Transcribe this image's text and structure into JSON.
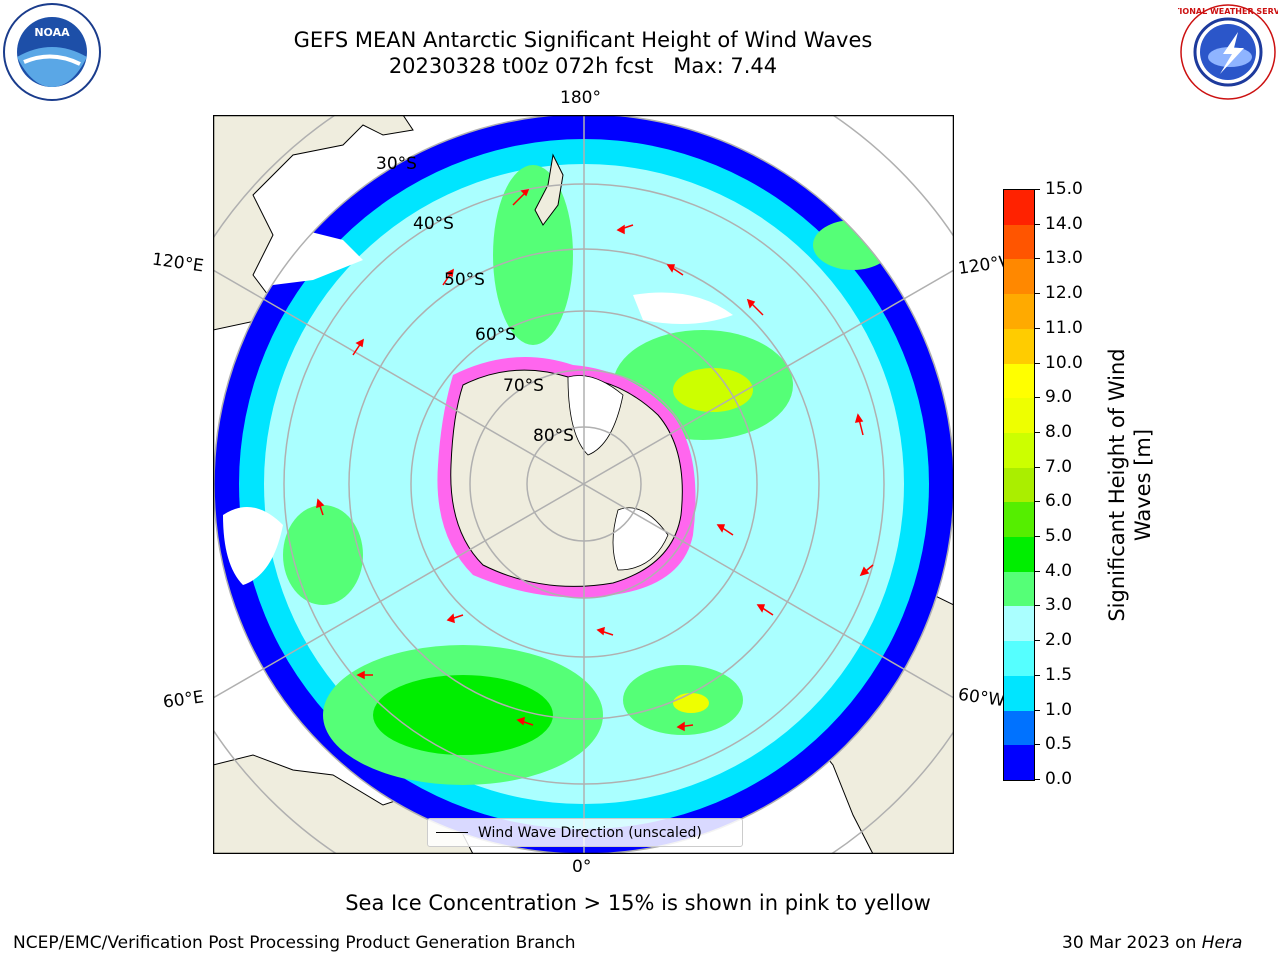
{
  "title": {
    "line1": "GEFS MEAN Antarctic Significant Height of Wind Waves",
    "line2": "20230328 t00z 072h fcst   Max: 7.44"
  },
  "logos": {
    "left": {
      "icon": "noaa-logo-icon",
      "text": "NOAA"
    },
    "right": {
      "icon": "nws-logo-icon",
      "text": "NATIONAL WEATHER SERVICE"
    }
  },
  "map": {
    "projection": "south-polar-stereographic",
    "longitude_labels": {
      "top": "180°",
      "bottom": "0°",
      "upper_left": "120°E",
      "upper_right": "120°W",
      "lower_left": "60°E",
      "lower_right": "60°W"
    },
    "latitude_labels": [
      "30°S",
      "40°S",
      "50°S",
      "60°S",
      "70°S",
      "80°S"
    ],
    "legend": "Wind Wave Direction (unscaled)",
    "colors": {
      "land": "#efedde",
      "ocean_no_data": "#ffffff",
      "grid": "#b0b0b0",
      "arrow": "#ff0000",
      "sea_ice": "#ff66ee"
    }
  },
  "colorbar": {
    "label": "Significant Height of Wind Waves [m]",
    "ticks": [
      "0.0",
      "0.5",
      "1.0",
      "1.5",
      "2.0",
      "3.0",
      "4.0",
      "5.0",
      "6.0",
      "7.0",
      "8.0",
      "9.0",
      "10.0",
      "11.0",
      "12.0",
      "13.0",
      "14.0",
      "15.0"
    ],
    "colors": [
      "#0000ff",
      "#0072ff",
      "#00e5ff",
      "#55ffff",
      "#aaffff",
      "#55ff77",
      "#00ee00",
      "#55ee00",
      "#aaee00",
      "#ccff00",
      "#eeff00",
      "#ffff00",
      "#ffcc00",
      "#ffaa00",
      "#ff8800",
      "#ff5500",
      "#ff2200"
    ]
  },
  "note": "Sea Ice Concentration > 15% is shown in pink to yellow",
  "footer": {
    "left": "NCEP/EMC/Verification Post Processing Product Generation Branch",
    "date": "30 Mar 2023 on ",
    "machine": "Hera"
  }
}
